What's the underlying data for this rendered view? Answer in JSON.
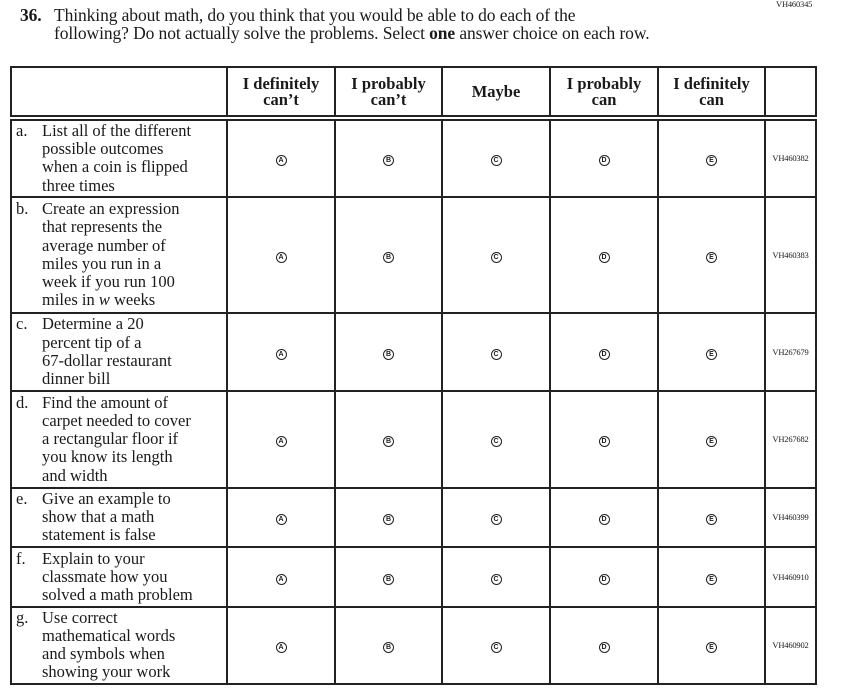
{
  "question_id": "VH460345",
  "question": {
    "number": "36.",
    "line1": "Thinking about math, do you think that you would be able to do each of the",
    "line2_pre": "following? Do not actually solve the problems. Select ",
    "line2_bold": "one",
    "line2_post": " answer choice on each row."
  },
  "columns": [
    {
      "line1": "I definitely",
      "line2": "can’t"
    },
    {
      "line1": "I probably",
      "line2": "can’t"
    },
    {
      "line1": "Maybe",
      "line2": ""
    },
    {
      "line1": "I probably",
      "line2": "can"
    },
    {
      "line1": "I definitely",
      "line2": "can"
    }
  ],
  "options": [
    "A",
    "B",
    "C",
    "D",
    "E"
  ],
  "rows": [
    {
      "label": "a.",
      "lines": [
        "List all of the different",
        "possible outcomes",
        "when a coin is flipped",
        "three times"
      ],
      "code": "VH460382"
    },
    {
      "label": "b.",
      "lines": [
        "Create an expression",
        "that represents the",
        "average number of",
        "miles you run in a",
        "week if you run 100"
      ],
      "last_pre": "miles in ",
      "last_italic": "w",
      "last_post": " weeks",
      "code": "VH460383"
    },
    {
      "label": "c.",
      "lines": [
        "Determine a 20",
        "percent tip of a",
        "67-dollar restaurant",
        "dinner bill"
      ],
      "code": "VH267679"
    },
    {
      "label": "d.",
      "lines": [
        "Find the amount of",
        "carpet needed to cover",
        "a rectangular floor if",
        "you know its length",
        "and width"
      ],
      "code": "VH267682"
    },
    {
      "label": "e.",
      "lines": [
        "Give an example to",
        "show that a math",
        "statement is false"
      ],
      "code": "VH460399"
    },
    {
      "label": "f.",
      "lines": [
        "Explain to your",
        "classmate how you",
        "solved a math problem"
      ],
      "code": "VH460910"
    },
    {
      "label": "g.",
      "lines": [
        "Use correct",
        "mathematical words",
        "and symbols when",
        "showing your work"
      ],
      "code": "VH460902"
    }
  ]
}
